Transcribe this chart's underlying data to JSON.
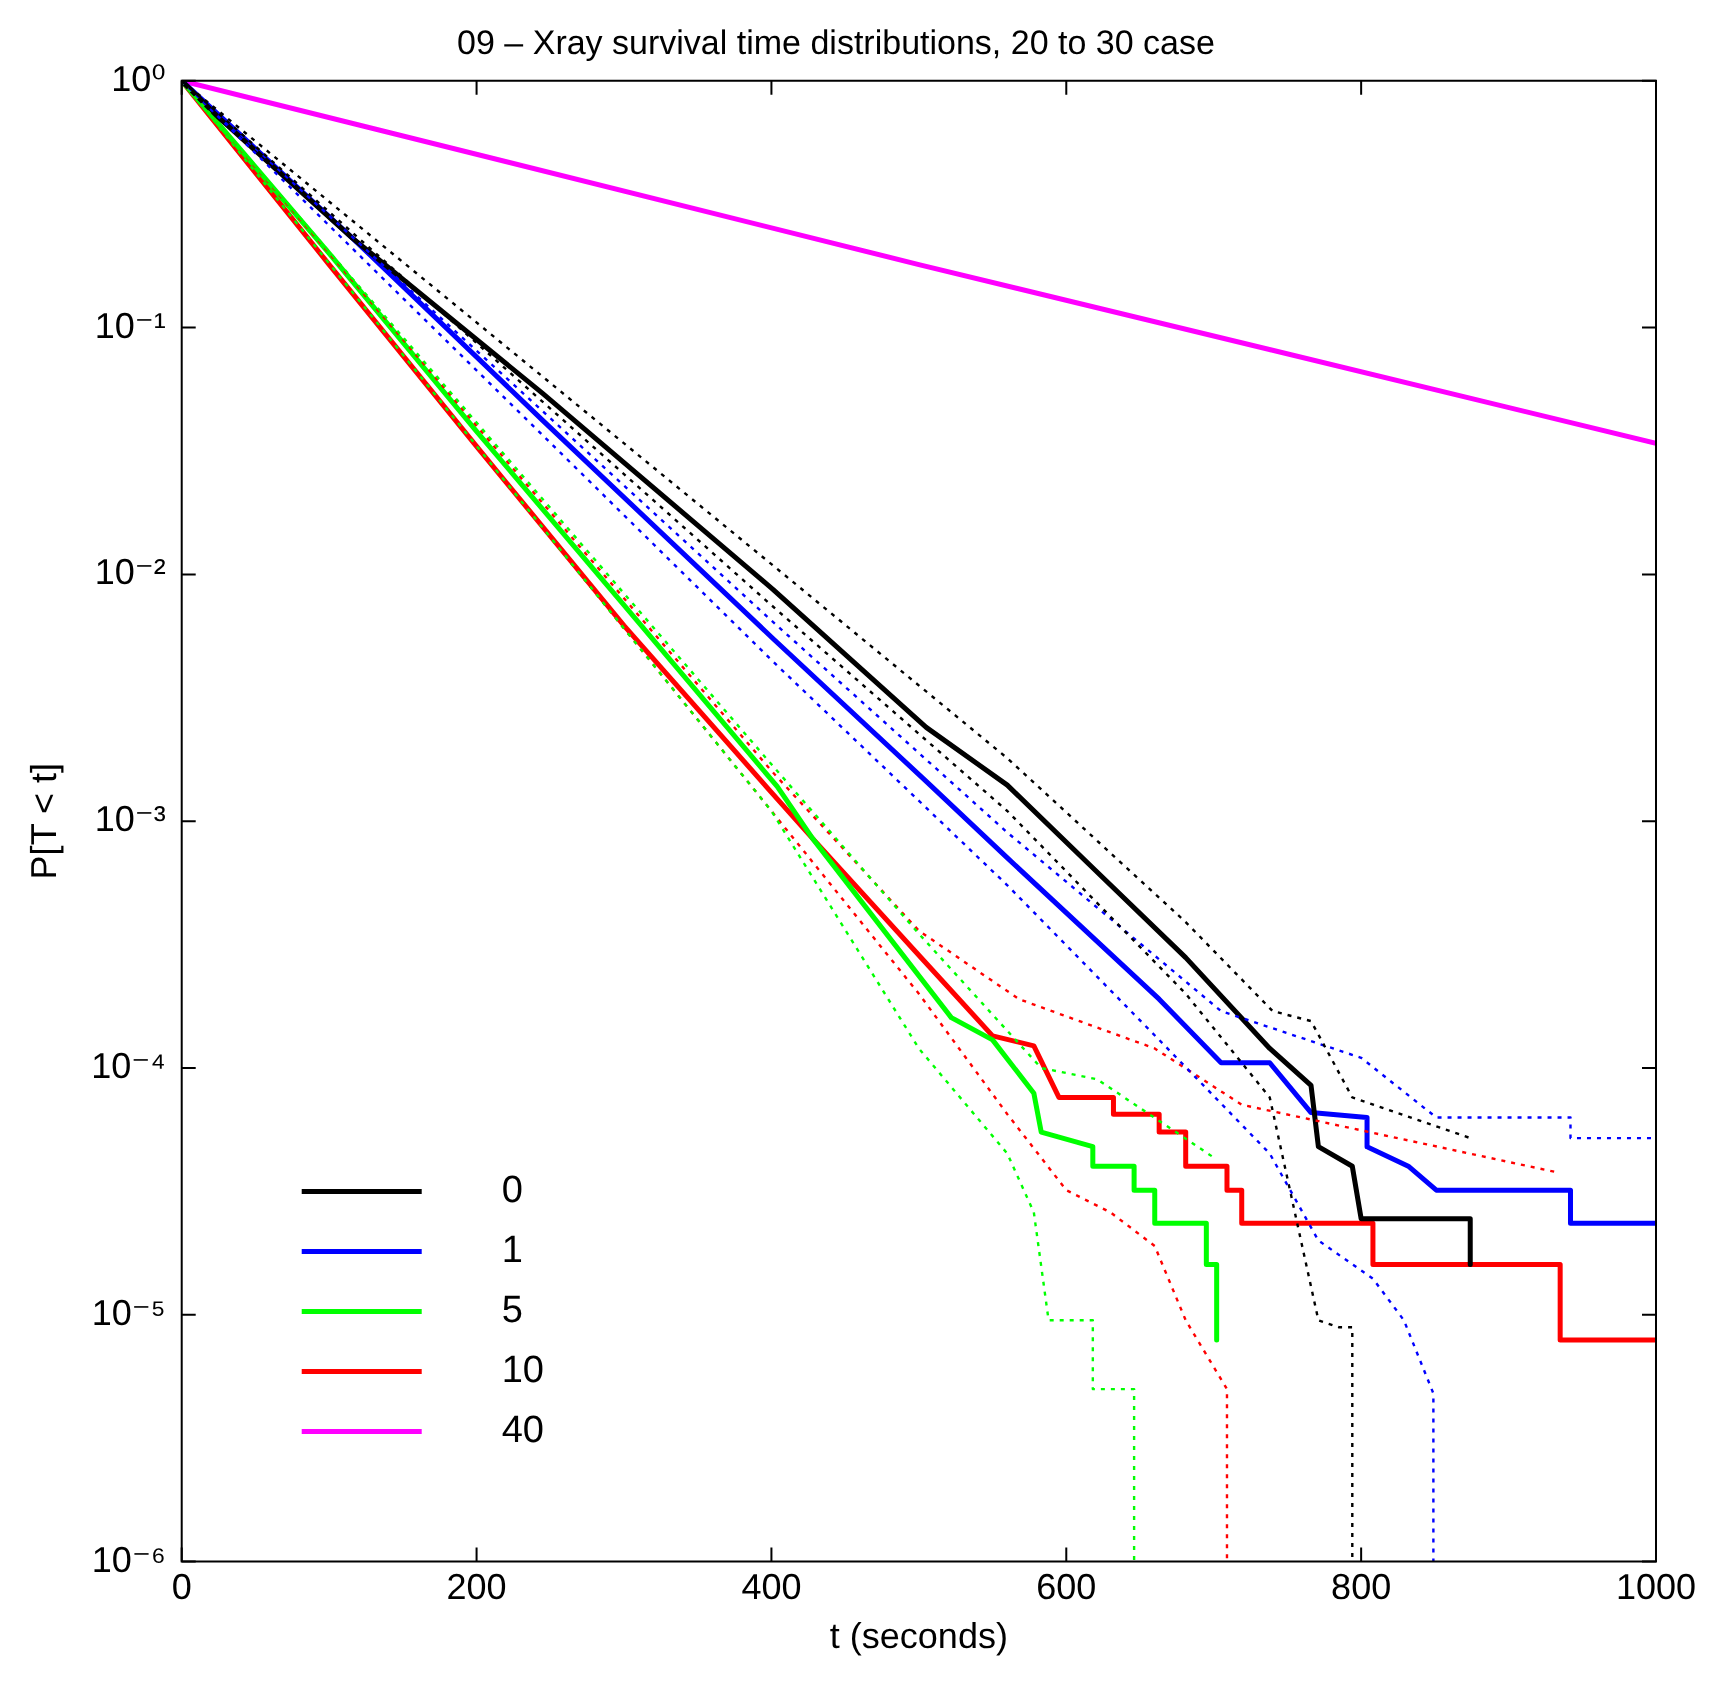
{
  "chart_data": {
    "type": "line",
    "title": "09 – Xray survival time distributions, 20 to 30 case",
    "xlabel": "t (seconds)",
    "ylabel": "P[T < t]",
    "log": "y",
    "grid": false,
    "legend": "bottom left",
    "xlim": [
      0,
      1000
    ],
    "xticks": [
      0,
      200,
      400,
      600,
      800,
      1000
    ],
    "ylim": [
      1e-06,
      1
    ],
    "yticks": [
      {
        "value": 1,
        "label": "10⁰"
      },
      {
        "value": 0.1,
        "label": "10⁻¹"
      },
      {
        "value": 0.01,
        "label": "10⁻²"
      },
      {
        "value": 0.001,
        "label": "10⁻³"
      },
      {
        "value": 0.0001,
        "label": "10⁻⁴"
      },
      {
        "value": 1e-05,
        "label": "10⁻⁵"
      },
      {
        "value": 1e-06,
        "label": "10⁻⁶"
      }
    ],
    "series": [
      {
        "color": "#000000",
        "line_style": "dotted",
        "x": [
          0,
          400,
          560,
          681,
          740,
          766,
          794,
          874
        ],
        "values": [
          1,
          0.011,
          0.0018,
          0.00039,
          0.00017,
          0.000155,
          7.6e-05,
          5.2e-05
        ]
      },
      {
        "color": "#000000",
        "line_style": "dotted",
        "x": [
          0,
          400,
          560,
          681,
          738,
          771,
          785,
          794,
          794
        ],
        "values": [
          1,
          0.0075,
          0.0011,
          0.0002,
          7.6e-05,
          9.5e-06,
          8.9e-06,
          8.9e-06,
          1e-06
        ]
      },
      {
        "color": "#0000ff",
        "line_style": "dotted",
        "x": [
          0,
          400,
          560,
          705,
          800,
          851,
          942,
          942,
          1000
        ],
        "values": [
          1,
          0.0065,
          0.0009,
          0.00017,
          0.00011,
          6.3e-05,
          6.3e-05,
          5.2e-05,
          5.2e-05
        ]
      },
      {
        "color": "#0000ff",
        "line_style": "dotted",
        "x": [
          0,
          400,
          560,
          663,
          738,
          771,
          808,
          829,
          849,
          849
        ],
        "values": [
          1,
          0.0045,
          0.00055,
          0.00013,
          4.5e-05,
          2e-05,
          1.4e-05,
          9.5e-06,
          4.8e-06,
          1e-06
        ]
      },
      {
        "color": "#00ff00",
        "line_style": "dotted",
        "x": [
          0,
          400,
          500,
          583,
          621,
          701
        ],
        "values": [
          1,
          0.0017,
          0.00035,
          0.0001,
          9e-05,
          4.3e-05
        ]
      },
      {
        "color": "#00ff00",
        "line_style": "dotted",
        "x": [
          0,
          400,
          500,
          560,
          578,
          588,
          618,
          618,
          646,
          646
        ],
        "values": [
          1,
          0.0011,
          0.00012,
          4.5e-05,
          2.6e-05,
          9.5e-06,
          9.5e-06,
          5e-06,
          5e-06,
          1e-06
        ]
      },
      {
        "color": "#ff0000",
        "line_style": "dotted",
        "x": [
          0,
          400,
          500,
          568,
          660,
          719,
          931
        ],
        "values": [
          1,
          0.0016,
          0.00036,
          0.00019,
          0.00012,
          7.1e-05,
          3.8e-05
        ]
      },
      {
        "color": "#ff0000",
        "line_style": "dotted",
        "x": [
          0,
          400,
          500,
          560,
          600,
          630,
          660,
          681,
          709,
          709
        ],
        "values": [
          1,
          0.0011,
          0.0002,
          6.5e-05,
          3.2e-05,
          2.6e-05,
          1.9e-05,
          9.5e-06,
          5e-06,
          1e-06
        ]
      },
      {
        "name": "0",
        "color": "#000000",
        "line_style": "solid",
        "x": [
          0,
          25,
          116,
          245,
          401,
          505,
          560,
          620,
          681,
          738,
          766,
          771,
          794,
          800,
          874,
          874
        ],
        "values": [
          1,
          0.71,
          0.23,
          0.054,
          0.0087,
          0.0024,
          0.0014,
          0.00063,
          0.00028,
          0.00012,
          8.5e-05,
          4.8e-05,
          4e-05,
          2.45e-05,
          2.45e-05,
          1.6e-05
        ]
      },
      {
        "name": "1",
        "color": "#0000ff",
        "line_style": "solid",
        "x": [
          0,
          116,
          245,
          401,
          505,
          560,
          663,
          705,
          738,
          766,
          804,
          804,
          832,
          851,
          942,
          942,
          1000
        ],
        "values": [
          1,
          0.23,
          0.042,
          0.0055,
          0.00145,
          0.00071,
          0.00019,
          0.000105,
          0.000105,
          6.6e-05,
          6.3e-05,
          4.8e-05,
          4e-05,
          3.2e-05,
          3.2e-05,
          2.35e-05,
          2.35e-05
        ]
      },
      {
        "name": "5",
        "color": "#00ff00",
        "line_style": "solid",
        "x": [
          0,
          100,
          200,
          300,
          404,
          428,
          522,
          550,
          578,
          583,
          618,
          618,
          646,
          646,
          660,
          660,
          695,
          695,
          702,
          702
        ],
        "values": [
          1,
          0.2,
          0.038,
          0.0075,
          0.00138,
          0.00085,
          0.00016,
          0.00013,
          7.9e-05,
          5.5e-05,
          4.8e-05,
          4e-05,
          4e-05,
          3.2e-05,
          3.2e-05,
          2.35e-05,
          2.35e-05,
          1.6e-05,
          1.6e-05,
          7.9e-06
        ]
      },
      {
        "name": "10",
        "color": "#ff0000",
        "line_style": "solid",
        "x": [
          0,
          100,
          200,
          300,
          398,
          428,
          498,
          550,
          578,
          595,
          632,
          632,
          663,
          663,
          681,
          681,
          709,
          709,
          719,
          719,
          808,
          808,
          935,
          935,
          1000
        ],
        "values": [
          1,
          0.18,
          0.033,
          0.0062,
          0.00135,
          0.00085,
          0.000295,
          0.000135,
          0.000123,
          7.6e-05,
          7.6e-05,
          6.5e-05,
          6.5e-05,
          5.5e-05,
          5.5e-05,
          4e-05,
          4e-05,
          3.2e-05,
          3.2e-05,
          2.35e-05,
          2.35e-05,
          1.6e-05,
          1.6e-05,
          7.9e-06,
          7.9e-06
        ]
      },
      {
        "name": "40",
        "color": "#ff00ff",
        "line_style": "solid",
        "x": [
          0,
          500,
          1000
        ],
        "values": [
          1,
          0.18,
          0.034
        ]
      }
    ]
  }
}
